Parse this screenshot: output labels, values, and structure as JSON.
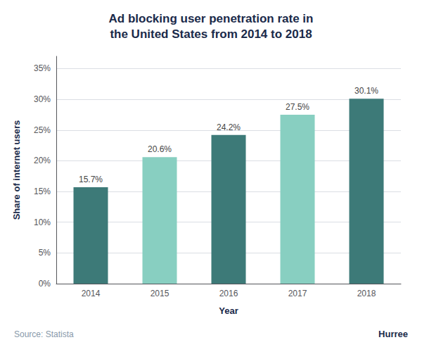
{
  "chart_data": {
    "type": "bar",
    "title": "Ad blocking user penetration rate in\nthe United States from 2014 to 2018",
    "xlabel": "Year",
    "ylabel": "Share of internet users",
    "categories": [
      "2014",
      "2015",
      "2016",
      "2017",
      "2018"
    ],
    "values": [
      15.7,
      20.6,
      24.2,
      27.5,
      30.1
    ],
    "value_labels": [
      "15.7%",
      "20.6%",
      "24.2%",
      "27.5%",
      "30.1%"
    ],
    "data_labels": true,
    "colors": [
      "#3d7a78",
      "#88cfc1",
      "#3d7a78",
      "#88cfc1",
      "#3d7a78"
    ],
    "ylim": [
      0,
      37
    ],
    "yticks": [
      {
        "value": 0,
        "label": "0%"
      },
      {
        "value": 5,
        "label": "5%"
      },
      {
        "value": 10,
        "label": "10%"
      },
      {
        "value": 15,
        "label": "15%"
      },
      {
        "value": 20,
        "label": "20%"
      },
      {
        "value": 25,
        "label": "25%"
      },
      {
        "value": 30,
        "label": "30%"
      },
      {
        "value": 35,
        "label": "35%"
      }
    ],
    "grid": true,
    "annotations": [
      "Source: Statista",
      "Hurree"
    ]
  }
}
